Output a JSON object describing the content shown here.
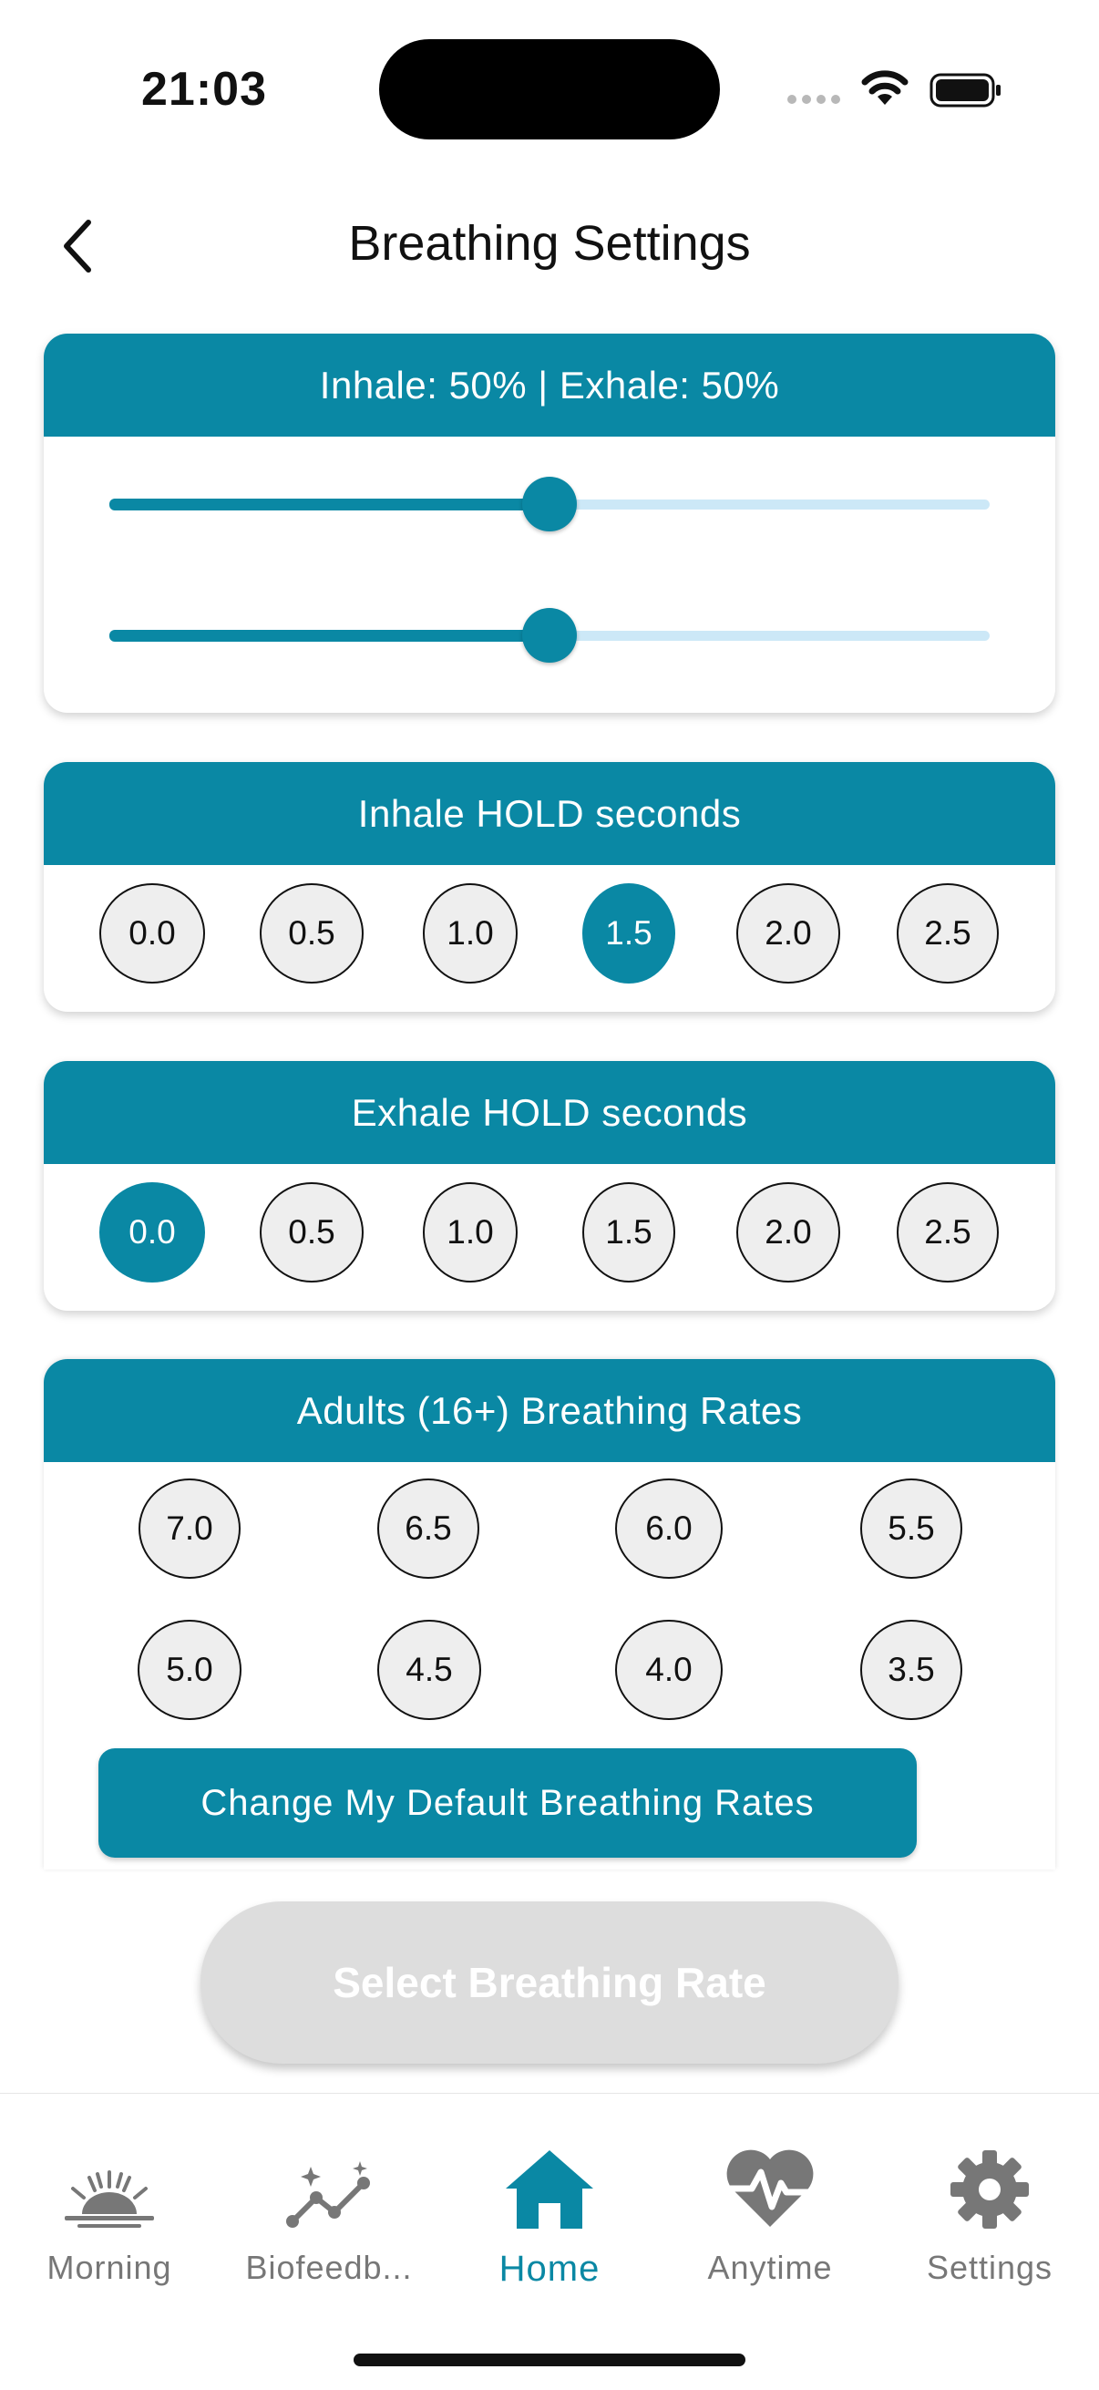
{
  "status_bar": {
    "time": "21:03"
  },
  "header": {
    "title": "Breathing Settings"
  },
  "ratio_card": {
    "title": "Inhale: 50% | Exhale: 50%",
    "inhale_percent": 50,
    "exhale_percent": 50
  },
  "inhale_hold": {
    "title": "Inhale HOLD seconds",
    "options": [
      "0.0",
      "0.5",
      "1.0",
      "1.5",
      "2.0",
      "2.5"
    ],
    "selected": "1.5"
  },
  "exhale_hold": {
    "title": "Exhale HOLD seconds",
    "options": [
      "0.0",
      "0.5",
      "1.0",
      "1.5",
      "2.0",
      "2.5"
    ],
    "selected": "0.0"
  },
  "rates": {
    "title": "Adults (16+) Breathing Rates",
    "row1": [
      "7.0",
      "6.5",
      "6.0",
      "5.5"
    ],
    "row2": [
      "5.0",
      "4.5",
      "4.0",
      "3.5"
    ],
    "change_button": "Change My Default Breathing Rates"
  },
  "select_button": "Select Breathing Rate",
  "tabs": [
    {
      "label": "Morning",
      "icon": "sunrise-icon"
    },
    {
      "label": "Biofeedb...",
      "icon": "trend-chart-icon"
    },
    {
      "label": "Home",
      "icon": "home-icon",
      "active": true
    },
    {
      "label": "Anytime",
      "icon": "heartbeat-icon"
    },
    {
      "label": "Settings",
      "icon": "gear-icon"
    }
  ],
  "colors": {
    "accent": "#0a88a4",
    "track_light": "#cce8f7",
    "disabled": "#dddddd"
  }
}
